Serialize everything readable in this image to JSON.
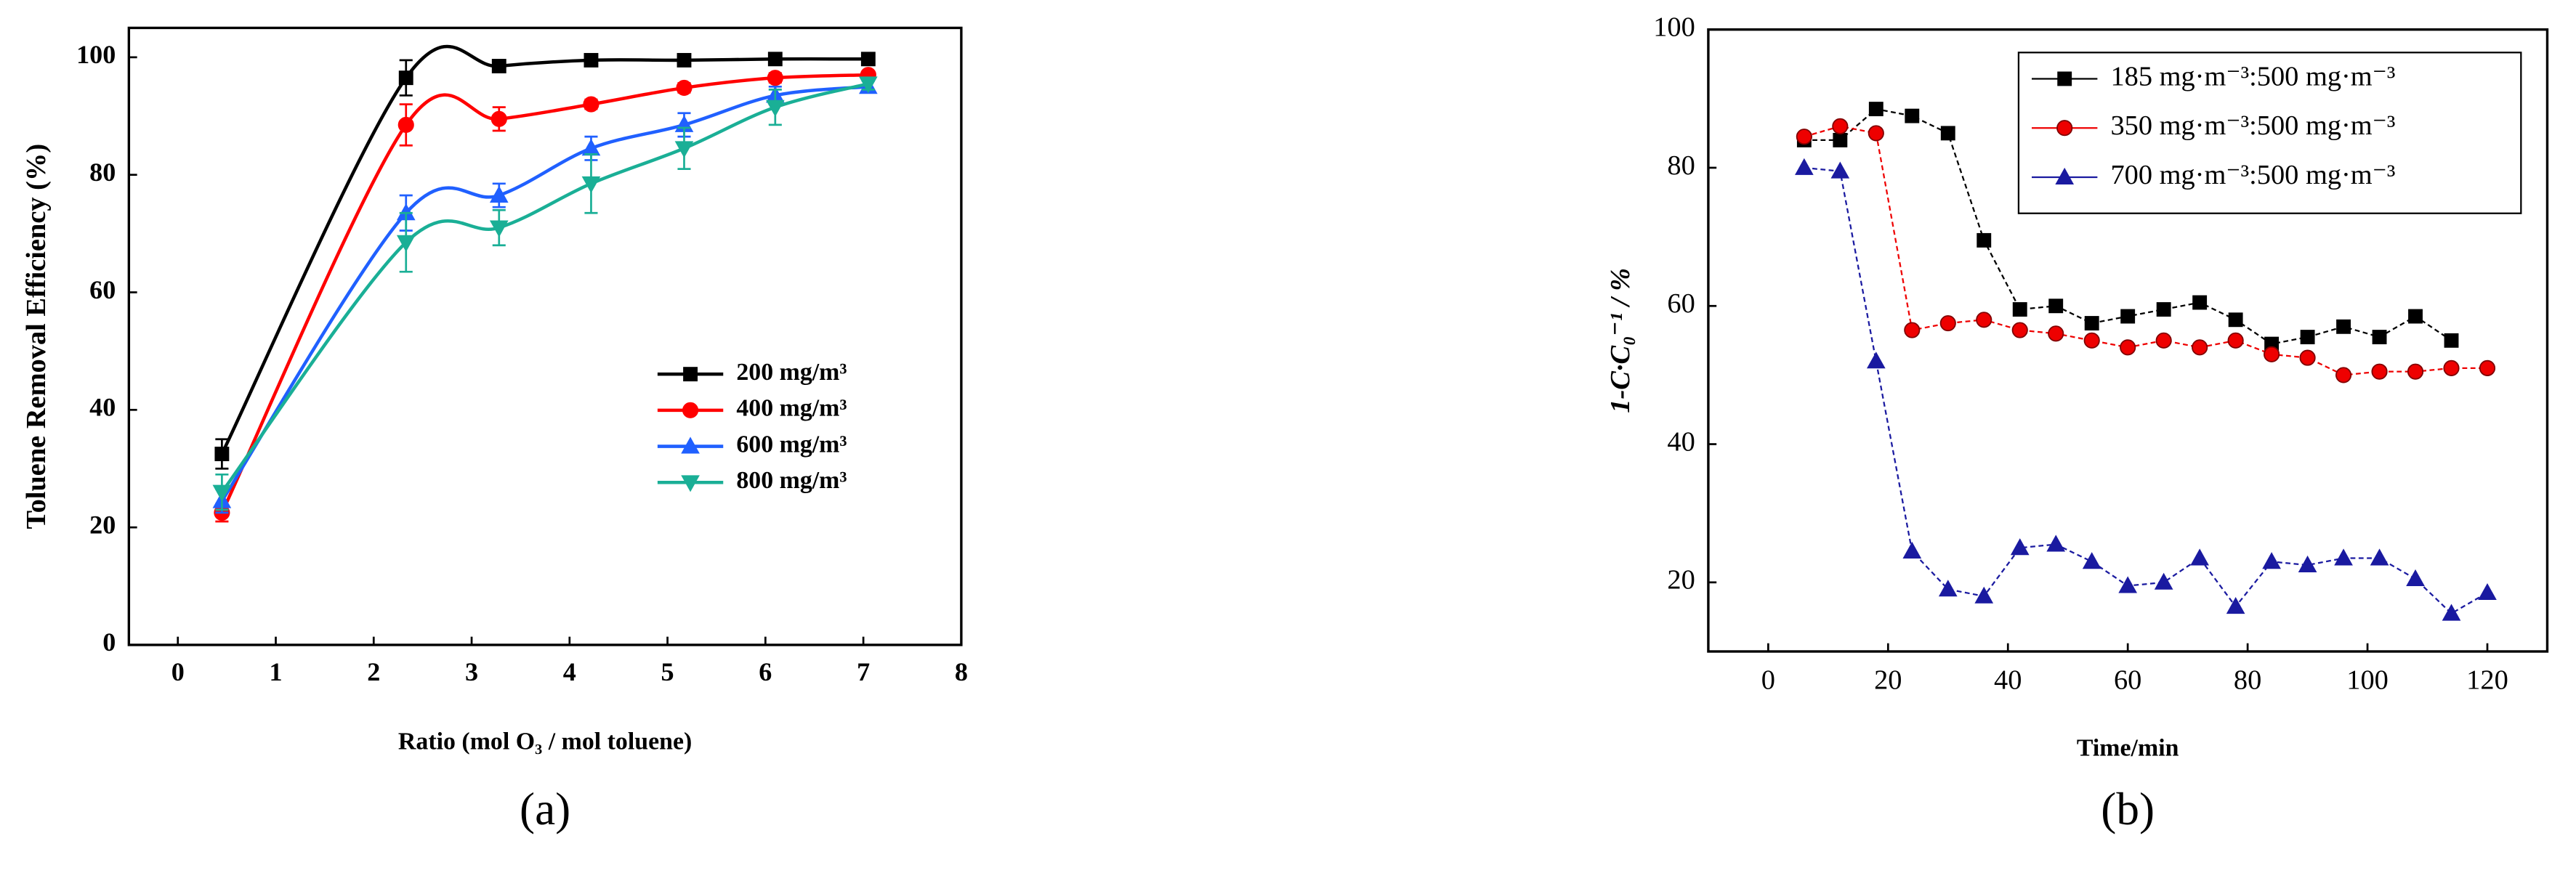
{
  "chart_data": [
    {
      "type": "line",
      "x_label": "Ratio (mol O₃ / mol toluene)",
      "y_label": "Toluene Removal Efficiency (%)",
      "caption": "(a)",
      "xlim": [
        -0.5,
        8
      ],
      "xticks": [
        0,
        1,
        2,
        3,
        4,
        5,
        6,
        7,
        8
      ],
      "ylim": [
        0,
        105
      ],
      "yticks": [
        0,
        20,
        40,
        60,
        80,
        100
      ],
      "curve": "smooth",
      "dashed": false,
      "legend": "lower right",
      "x": [
        0.45,
        2.33,
        3.28,
        4.22,
        5.17,
        6.1,
        7.05
      ],
      "series": [
        {
          "name": "200 mg/m³",
          "color": "#000000",
          "marker": "square",
          "values": [
            32.5,
            96.5,
            98.5,
            99.5,
            99.5,
            99.7,
            99.7
          ],
          "errors": [
            2.5,
            3,
            0.5,
            0.5,
            0.5,
            0.3,
            0.3
          ]
        },
        {
          "name": "400 mg/m³",
          "color": "#ff0000",
          "marker": "circle",
          "values": [
            22.5,
            88.5,
            89.5,
            92,
            94.8,
            96.5,
            97
          ],
          "errors": [
            1.5,
            3.5,
            2,
            0.8,
            0.8,
            0.8,
            0.5
          ]
        },
        {
          "name": "600 mg/m³",
          "color": "#2060ff",
          "marker": "triangle-up",
          "values": [
            24.5,
            73.5,
            76.5,
            84.5,
            88.5,
            93.5,
            95
          ],
          "errors": [
            2,
            3,
            2,
            2,
            2,
            1.5,
            1
          ]
        },
        {
          "name": "800 mg/m³",
          "color": "#1aaf96",
          "marker": "triangle-down",
          "values": [
            26,
            68.5,
            71,
            78.5,
            84.5,
            91.5,
            95.5
          ],
          "errors": [
            3,
            5,
            3,
            5,
            3.5,
            3,
            1
          ]
        }
      ]
    },
    {
      "type": "line",
      "x_label": "Time/min",
      "y_label": "1-C·C₀⁻¹ / %",
      "caption": "(b)",
      "xlim": [
        -10,
        130
      ],
      "xticks": [
        0,
        20,
        40,
        60,
        80,
        100,
        120
      ],
      "ylim": [
        10,
        100
      ],
      "yticks": [
        20,
        40,
        60,
        80,
        100
      ],
      "curve": "straight",
      "dashed": true,
      "legend": "upper right",
      "x": [
        6,
        12,
        18,
        24,
        30,
        36,
        42,
        48,
        54,
        60,
        66,
        72,
        78,
        84,
        90,
        96,
        102,
        108,
        114,
        120
      ],
      "series": [
        {
          "name": "185 mg·m⁻³:500 mg·m⁻³",
          "color": "#000000",
          "marker": "square",
          "values": [
            84,
            84,
            88.5,
            87.5,
            85,
            69.5,
            59.5,
            60,
            57.5,
            58.5,
            59.5,
            60.5,
            58,
            54.5,
            55.5,
            57,
            55.5,
            58.5,
            55,
            null
          ]
        },
        {
          "name": "350 mg·m⁻³:500 mg·m⁻³",
          "color": "#ee0000",
          "marker": "circle",
          "values": [
            84.5,
            86,
            85,
            56.5,
            57.5,
            58,
            56.5,
            56,
            55,
            54,
            55,
            54,
            55,
            53,
            52.5,
            50,
            50.5,
            50.5,
            51,
            51
          ]
        },
        {
          "name": "700 mg·m⁻³:500 mg·m⁻³",
          "color": "#1a1aa0",
          "marker": "triangle-up",
          "values": [
            80,
            79.5,
            52,
            24.5,
            19,
            18,
            25,
            25.5,
            23,
            19.5,
            20,
            23.5,
            16.5,
            23,
            22.5,
            23.5,
            23.5,
            20.5,
            15.5,
            18.5
          ]
        }
      ]
    }
  ]
}
